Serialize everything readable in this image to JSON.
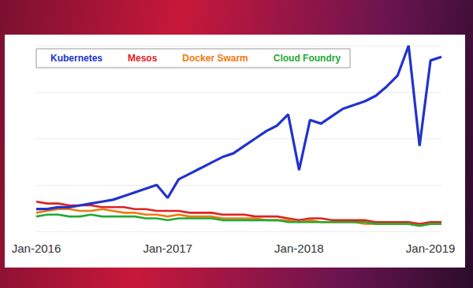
{
  "chart_data": {
    "type": "line",
    "categories": [
      "Jan-2016",
      null,
      null,
      null,
      null,
      null,
      null,
      null,
      null,
      null,
      null,
      null,
      "Jan-2017",
      null,
      null,
      null,
      null,
      null,
      null,
      null,
      null,
      null,
      null,
      null,
      "Jan-2018",
      null,
      null,
      null,
      null,
      null,
      null,
      null,
      null,
      null,
      null,
      null,
      "Jan-2019",
      null
    ],
    "series": [
      {
        "name": "Kubernetes",
        "color": "#2233cc",
        "values": [
          12,
          12,
          13,
          13,
          14,
          15,
          16,
          17,
          19,
          21,
          23,
          25,
          18,
          28,
          31,
          34,
          37,
          40,
          42,
          46,
          50,
          54,
          57,
          63,
          33,
          60,
          58,
          62,
          66,
          68,
          70,
          73,
          78,
          84,
          100,
          46,
          92,
          94
        ]
      },
      {
        "name": "Mesos",
        "color": "#dd2222",
        "values": [
          16,
          15,
          15,
          14,
          14,
          14,
          13,
          13,
          13,
          12,
          12,
          11,
          11,
          11,
          10,
          10,
          10,
          9,
          9,
          9,
          8,
          8,
          8,
          7,
          6,
          7,
          7,
          6,
          6,
          6,
          6,
          5,
          5,
          5,
          5,
          4,
          5,
          5
        ]
      },
      {
        "name": "Docker Swarm",
        "color": "#f07a10",
        "values": [
          10,
          11,
          12,
          12,
          11,
          11,
          12,
          11,
          10,
          10,
          9,
          9,
          8,
          9,
          8,
          8,
          8,
          7,
          7,
          7,
          7,
          6,
          6,
          6,
          5,
          6,
          5,
          5,
          5,
          5,
          4,
          4,
          4,
          4,
          4,
          3,
          4,
          4
        ]
      },
      {
        "name": "Cloud Foundry",
        "color": "#22aa33",
        "values": [
          8,
          9,
          9,
          8,
          8,
          9,
          8,
          8,
          8,
          8,
          7,
          7,
          6,
          7,
          7,
          7,
          7,
          6,
          6,
          6,
          6,
          6,
          6,
          5,
          5,
          5,
          5,
          5,
          5,
          5,
          5,
          4,
          4,
          4,
          4,
          3,
          4,
          4
        ]
      }
    ],
    "ylim": [
      0,
      100
    ],
    "yticks": [
      0,
      25,
      50,
      75,
      100
    ],
    "grid": true,
    "legend": "top-left",
    "tick_labels": "x"
  }
}
